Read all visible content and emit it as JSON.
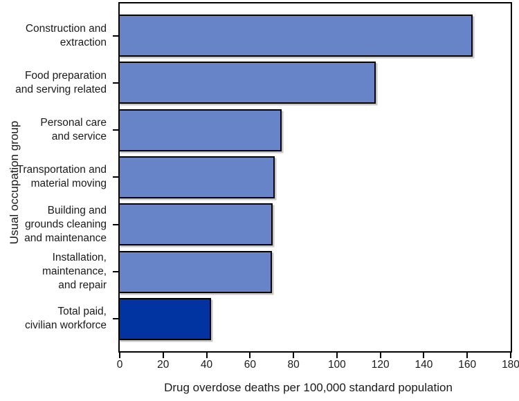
{
  "figure": {
    "y_axis_title": "Usual occupation group",
    "x_axis_title": "Drug overdose deaths per 100,000 standard population"
  },
  "chart_data": {
    "type": "bar",
    "orientation": "horizontal",
    "title": "",
    "xlabel": "Drug overdose deaths per 100,000 standard population",
    "ylabel": "Usual occupation group",
    "xlim": [
      0,
      180
    ],
    "x_ticks": [
      0,
      20,
      40,
      60,
      80,
      100,
      120,
      140,
      160,
      180
    ],
    "grid": false,
    "legend": false,
    "categories": [
      "Construction and extraction",
      "Food preparation and serving related",
      "Personal care and service",
      "Transportation and material moving",
      "Building and grounds cleaning and maintenance",
      "Installation, maintenance, and repair",
      "Total paid, civilian workforce"
    ],
    "category_lines": [
      [
        "Construction and",
        "extraction"
      ],
      [
        "Food preparation",
        "and serving related"
      ],
      [
        "Personal care",
        "and service"
      ],
      [
        "Transportation and",
        "material moving"
      ],
      [
        "Building and",
        "grounds cleaning",
        "and maintenance"
      ],
      [
        "Installation,",
        "maintenance,",
        "and repair"
      ],
      [
        "Total paid,",
        "civilian workforce"
      ]
    ],
    "values": [
      162.6,
      117.9,
      74.4,
      71.4,
      70.4,
      70.1,
      42.2
    ],
    "colors": {
      "bar_fill": "#6684C7",
      "bar_highlight": "#0133A1",
      "bar_outline": "#000000",
      "highlight_category": "Total paid, civilian workforce"
    }
  }
}
